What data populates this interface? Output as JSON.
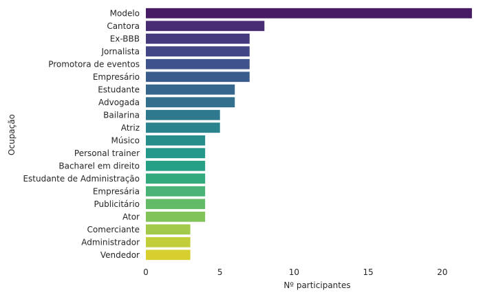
{
  "chart_data": {
    "type": "bar",
    "orientation": "horizontal",
    "categories": [
      "Modelo",
      "Cantora",
      "Ex-BBB",
      "Jornalista",
      "Promotora de eventos",
      "Empresário",
      "Estudante",
      "Advogada",
      "Bailarina",
      "Atriz",
      "Músico",
      "Personal trainer",
      "Bacharel em direito",
      "Estudante de Administração",
      "Empresária",
      "Publicitário",
      "Ator",
      "Comerciante",
      "Administrador",
      "Vendedor"
    ],
    "values": [
      22,
      8,
      7,
      7,
      7,
      7,
      6,
      6,
      5,
      5,
      4,
      4,
      4,
      4,
      4,
      4,
      4,
      3,
      3,
      3
    ],
    "colors": [
      "#471c64",
      "#482c73",
      "#463a7f",
      "#434686",
      "#3f528b",
      "#3a5c8c",
      "#36668c",
      "#32708d",
      "#2e798e",
      "#2b838e",
      "#278d8b",
      "#23978a",
      "#26a085",
      "#33aa7e",
      "#48b374",
      "#63bb68",
      "#81c259",
      "#a2c949",
      "#c2ce39",
      "#d6cf2f"
    ],
    "xlabel": "Nº participantes",
    "ylabel": "Ocupação",
    "xlim": [
      0,
      22.05
    ],
    "xticks": [
      "0",
      "5",
      "10",
      "15",
      "20"
    ],
    "grid": false,
    "legend": "none"
  }
}
